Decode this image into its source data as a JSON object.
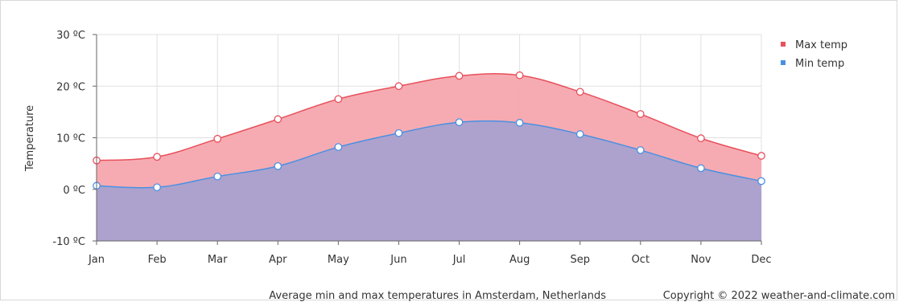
{
  "chart_data": {
    "type": "area",
    "categories": [
      "Jan",
      "Feb",
      "Mar",
      "Apr",
      "May",
      "Jun",
      "Jul",
      "Aug",
      "Sep",
      "Oct",
      "Nov",
      "Dec"
    ],
    "series": [
      {
        "name": "Max temp",
        "color": "#e8505b",
        "fill": "#f5a7ae",
        "values": [
          5.6,
          6.3,
          9.8,
          13.6,
          17.5,
          20.0,
          22.0,
          22.1,
          18.9,
          14.6,
          9.9,
          6.5
        ]
      },
      {
        "name": "Min temp",
        "color": "#4a90e2",
        "fill": "#a9a1cf",
        "values": [
          0.7,
          0.4,
          2.5,
          4.5,
          8.2,
          10.9,
          13.0,
          12.9,
          10.7,
          7.6,
          4.1,
          1.6
        ]
      }
    ],
    "ylabel": "Temperature",
    "ylim": [
      -10,
      30
    ],
    "yticks": [
      30,
      20,
      10,
      0,
      -10
    ],
    "ytick_labels": [
      "30 ºC",
      "20 ºC",
      "10 ºC",
      "0 ºC",
      "-10 ºC"
    ],
    "grid": true,
    "legend_position": "top-right"
  },
  "footer": {
    "caption": "Average min and max temperatures in Amsterdam, Netherlands",
    "copyright": "Copyright © 2022  weather-and-climate.com"
  }
}
